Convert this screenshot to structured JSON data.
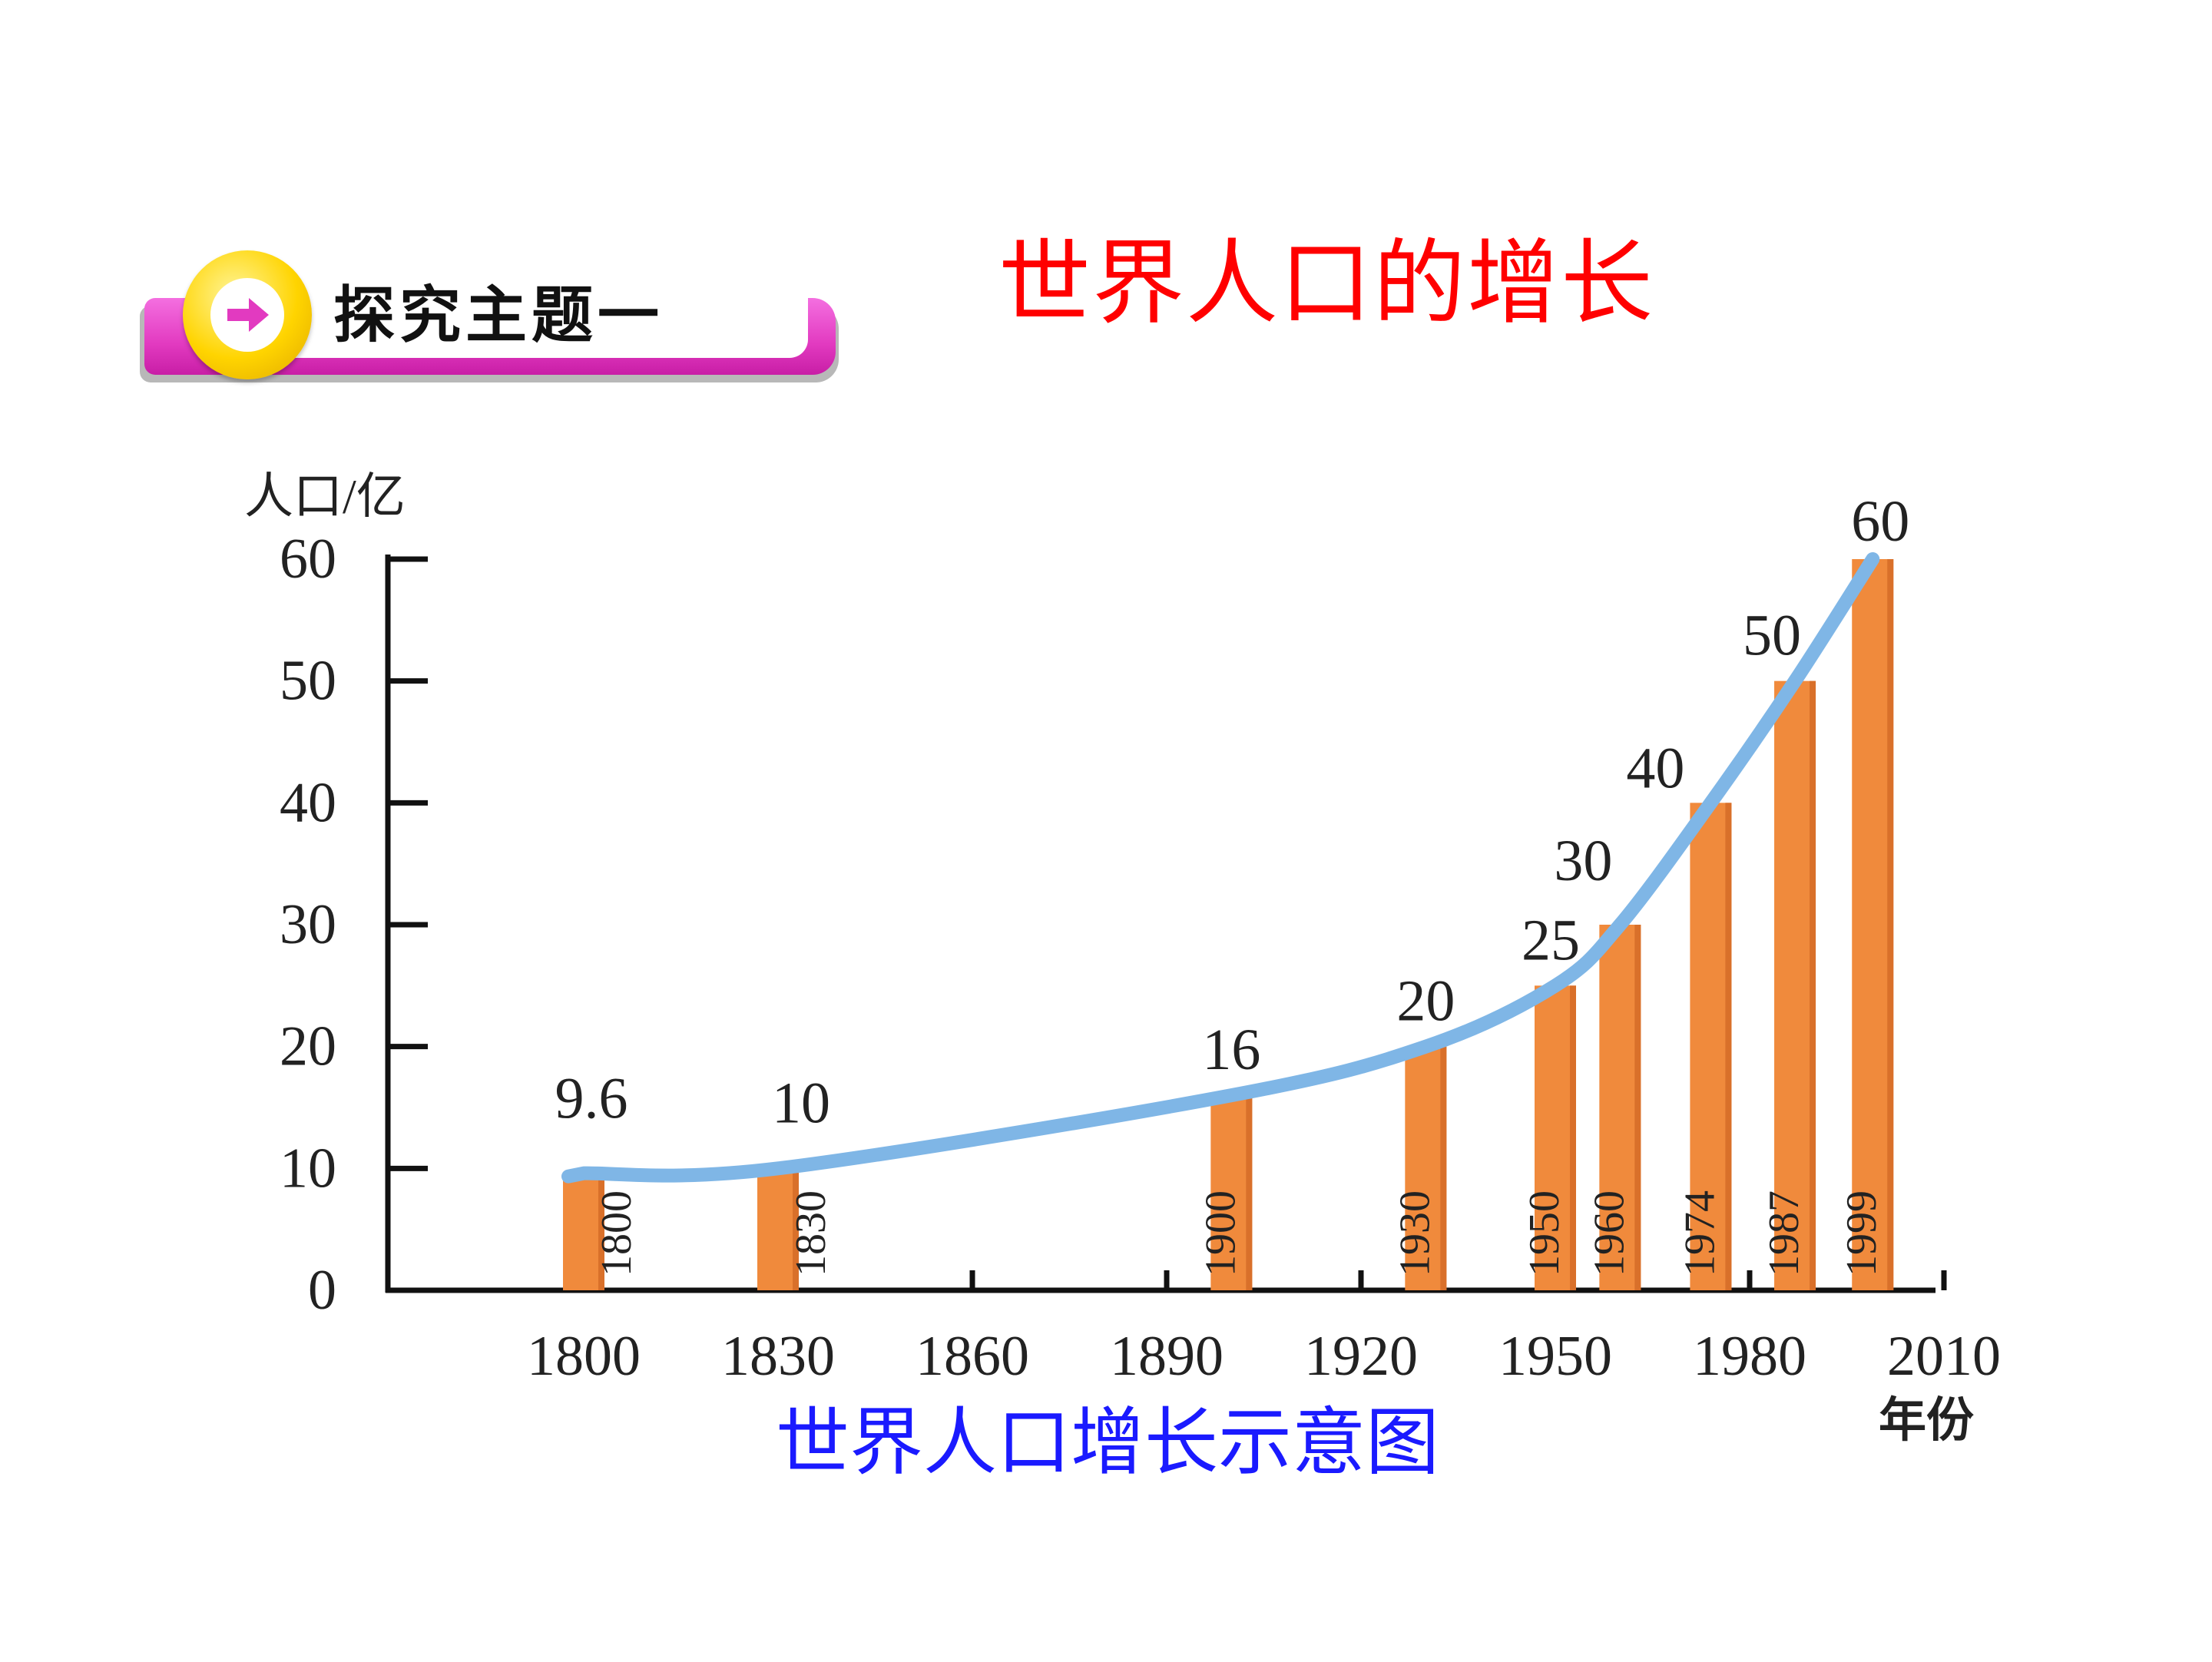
{
  "topic_tab": {
    "label": "探究主题一",
    "icon": "arrow-right-icon"
  },
  "page_title": "世界人口的增长",
  "caption": "世界人口增长示意图",
  "colors": {
    "bar": "#f08a3c",
    "line": "#7fb6e6",
    "title": "#ff0000",
    "caption": "#1a1aff",
    "pink": "#e23ac0"
  },
  "chart_data": {
    "type": "bar",
    "title": "世界人口增长示意图",
    "ylabel": "人口/亿",
    "xlabel": "年份",
    "ylim": [
      0,
      60
    ],
    "xlim": [
      1780,
      2010
    ],
    "yticks": [
      0,
      10,
      20,
      30,
      40,
      50,
      60
    ],
    "xticks": [
      1800,
      1830,
      1860,
      1890,
      1920,
      1950,
      1980,
      2010
    ],
    "bars": [
      {
        "year": 1800,
        "value": 9.6,
        "value_label": "9.6",
        "year_label": "1800"
      },
      {
        "year": 1830,
        "value": 10,
        "value_label": "10",
        "year_label": "1830"
      },
      {
        "year": 1900,
        "value": 16,
        "value_label": "16",
        "year_label": "1900"
      },
      {
        "year": 1930,
        "value": 20,
        "value_label": "20",
        "year_label": "1930"
      },
      {
        "year": 1950,
        "value": 25,
        "value_label": "25",
        "year_label": "1950"
      },
      {
        "year": 1960,
        "value": 30,
        "value_label": "30",
        "year_label": "1960"
      },
      {
        "year": 1974,
        "value": 40,
        "value_label": "40",
        "year_label": "1974"
      },
      {
        "year": 1987,
        "value": 50,
        "value_label": "50",
        "year_label": "1987"
      },
      {
        "year": 1999,
        "value": 60,
        "value_label": "60",
        "year_label": "1999"
      }
    ],
    "trend_line": true
  }
}
